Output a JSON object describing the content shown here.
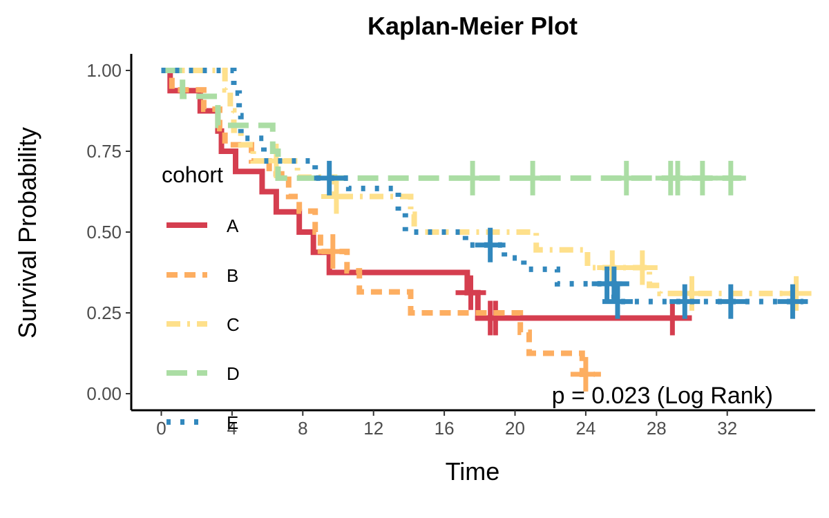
{
  "chart_data": {
    "type": "line",
    "title": "Kaplan-Meier Plot",
    "xlabel": "Time",
    "ylabel": "Survival Probability",
    "xlim": [
      -1,
      37
    ],
    "ylim": [
      0,
      1
    ],
    "x_ticks": [
      0,
      4,
      8,
      12,
      16,
      20,
      24,
      28,
      32
    ],
    "x_tick_labels": [
      "0",
      "4",
      "8",
      "12",
      "16",
      "20",
      "24",
      "28",
      "32"
    ],
    "y_ticks": [
      0,
      0.25,
      0.5,
      0.75,
      1
    ],
    "y_tick_labels": [
      "0.00",
      "0.25",
      "0.50",
      "0.75",
      "1.00"
    ],
    "grid": false,
    "legend": {
      "title": "cohort",
      "position": "left-inside"
    },
    "annotation": "p = 0.023 (Log Rank)",
    "series": [
      {
        "name": "A",
        "color": "#d53e4f",
        "dash": "solid",
        "steps": [
          [
            0,
            1.0
          ],
          [
            0.5,
            0.9375
          ],
          [
            2.2,
            0.875
          ],
          [
            3.2,
            0.8125
          ],
          [
            3.4,
            0.75
          ],
          [
            4.2,
            0.6875
          ],
          [
            5.7,
            0.625
          ],
          [
            6.5,
            0.5625
          ],
          [
            7.8,
            0.5
          ],
          [
            8.6,
            0.4375
          ],
          [
            9.5,
            0.375
          ],
          [
            17.3,
            0.3125
          ],
          [
            17.9,
            0.234
          ],
          [
            30.0,
            0.234
          ]
        ],
        "censored": [
          [
            17.5,
            0.3125
          ],
          [
            18.6,
            0.234
          ],
          [
            18.9,
            0.234
          ],
          [
            28.9,
            0.234
          ]
        ]
      },
      {
        "name": "B",
        "color": "#fdae61",
        "dash": "dash",
        "steps": [
          [
            0,
            1.0
          ],
          [
            0.6,
            0.94
          ],
          [
            2.4,
            0.88
          ],
          [
            3.3,
            0.82
          ],
          [
            3.6,
            0.77
          ],
          [
            5.1,
            0.72
          ],
          [
            6.1,
            0.68
          ],
          [
            7.2,
            0.61
          ],
          [
            7.8,
            0.565
          ],
          [
            8.7,
            0.5
          ],
          [
            9.0,
            0.44
          ],
          [
            10.5,
            0.38
          ],
          [
            11.2,
            0.315
          ],
          [
            14.1,
            0.25
          ],
          [
            20.3,
            0.19
          ],
          [
            20.8,
            0.125
          ],
          [
            23.8,
            0.06
          ],
          [
            24.5,
            0.06
          ]
        ],
        "censored": [
          [
            9.7,
            0.44
          ],
          [
            24.0,
            0.06
          ]
        ]
      },
      {
        "name": "C",
        "color": "#fee08b",
        "dash": "dashdot",
        "steps": [
          [
            0,
            1.0
          ],
          [
            3.6,
            0.94
          ],
          [
            3.9,
            0.875
          ],
          [
            4.1,
            0.815
          ],
          [
            4.5,
            0.77
          ],
          [
            5.2,
            0.72
          ],
          [
            7.7,
            0.67
          ],
          [
            8.1,
            0.67
          ],
          [
            9.8,
            0.61
          ],
          [
            14.1,
            0.555
          ],
          [
            14.3,
            0.5
          ],
          [
            17.2,
            0.5
          ],
          [
            21.2,
            0.445
          ],
          [
            24.1,
            0.39
          ],
          [
            27.6,
            0.335
          ],
          [
            28.2,
            0.31
          ],
          [
            36.0,
            0.31
          ]
        ],
        "censored": [
          [
            6.5,
            0.72
          ],
          [
            9.9,
            0.61
          ],
          [
            25.5,
            0.39
          ],
          [
            27.2,
            0.39
          ],
          [
            30.0,
            0.31
          ],
          [
            35.9,
            0.31
          ]
        ]
      },
      {
        "name": "D",
        "color": "#abdda4",
        "dash": "longdash",
        "steps": [
          [
            0,
            1.0
          ],
          [
            1.2,
            0.92
          ],
          [
            3.2,
            0.83
          ],
          [
            6.3,
            0.75
          ],
          [
            6.6,
            0.667
          ],
          [
            32.8,
            0.667
          ]
        ],
        "censored": [
          [
            17.6,
            0.667
          ],
          [
            21.0,
            0.667
          ],
          [
            26.3,
            0.667
          ],
          [
            28.8,
            0.667
          ],
          [
            29.2,
            0.667
          ],
          [
            30.6,
            0.667
          ],
          [
            32.2,
            0.667
          ]
        ]
      },
      {
        "name": "E",
        "color": "#3288bd",
        "dash": "dot",
        "steps": [
          [
            0,
            1.0
          ],
          [
            4.1,
            0.93
          ],
          [
            4.4,
            0.86
          ],
          [
            4.5,
            0.79
          ],
          [
            5.8,
            0.72
          ],
          [
            8.7,
            0.667
          ],
          [
            10.6,
            0.635
          ],
          [
            13.4,
            0.56
          ],
          [
            13.8,
            0.5
          ],
          [
            17.2,
            0.46
          ],
          [
            19.4,
            0.42
          ],
          [
            20.5,
            0.385
          ],
          [
            22.4,
            0.34
          ],
          [
            25.6,
            0.285
          ],
          [
            36.3,
            0.285
          ]
        ],
        "censored": [
          [
            9.5,
            0.667
          ],
          [
            18.6,
            0.46
          ],
          [
            25.2,
            0.34
          ],
          [
            25.6,
            0.34
          ],
          [
            25.8,
            0.285
          ],
          [
            29.6,
            0.285
          ],
          [
            32.2,
            0.285
          ],
          [
            35.7,
            0.285
          ]
        ]
      }
    ]
  }
}
